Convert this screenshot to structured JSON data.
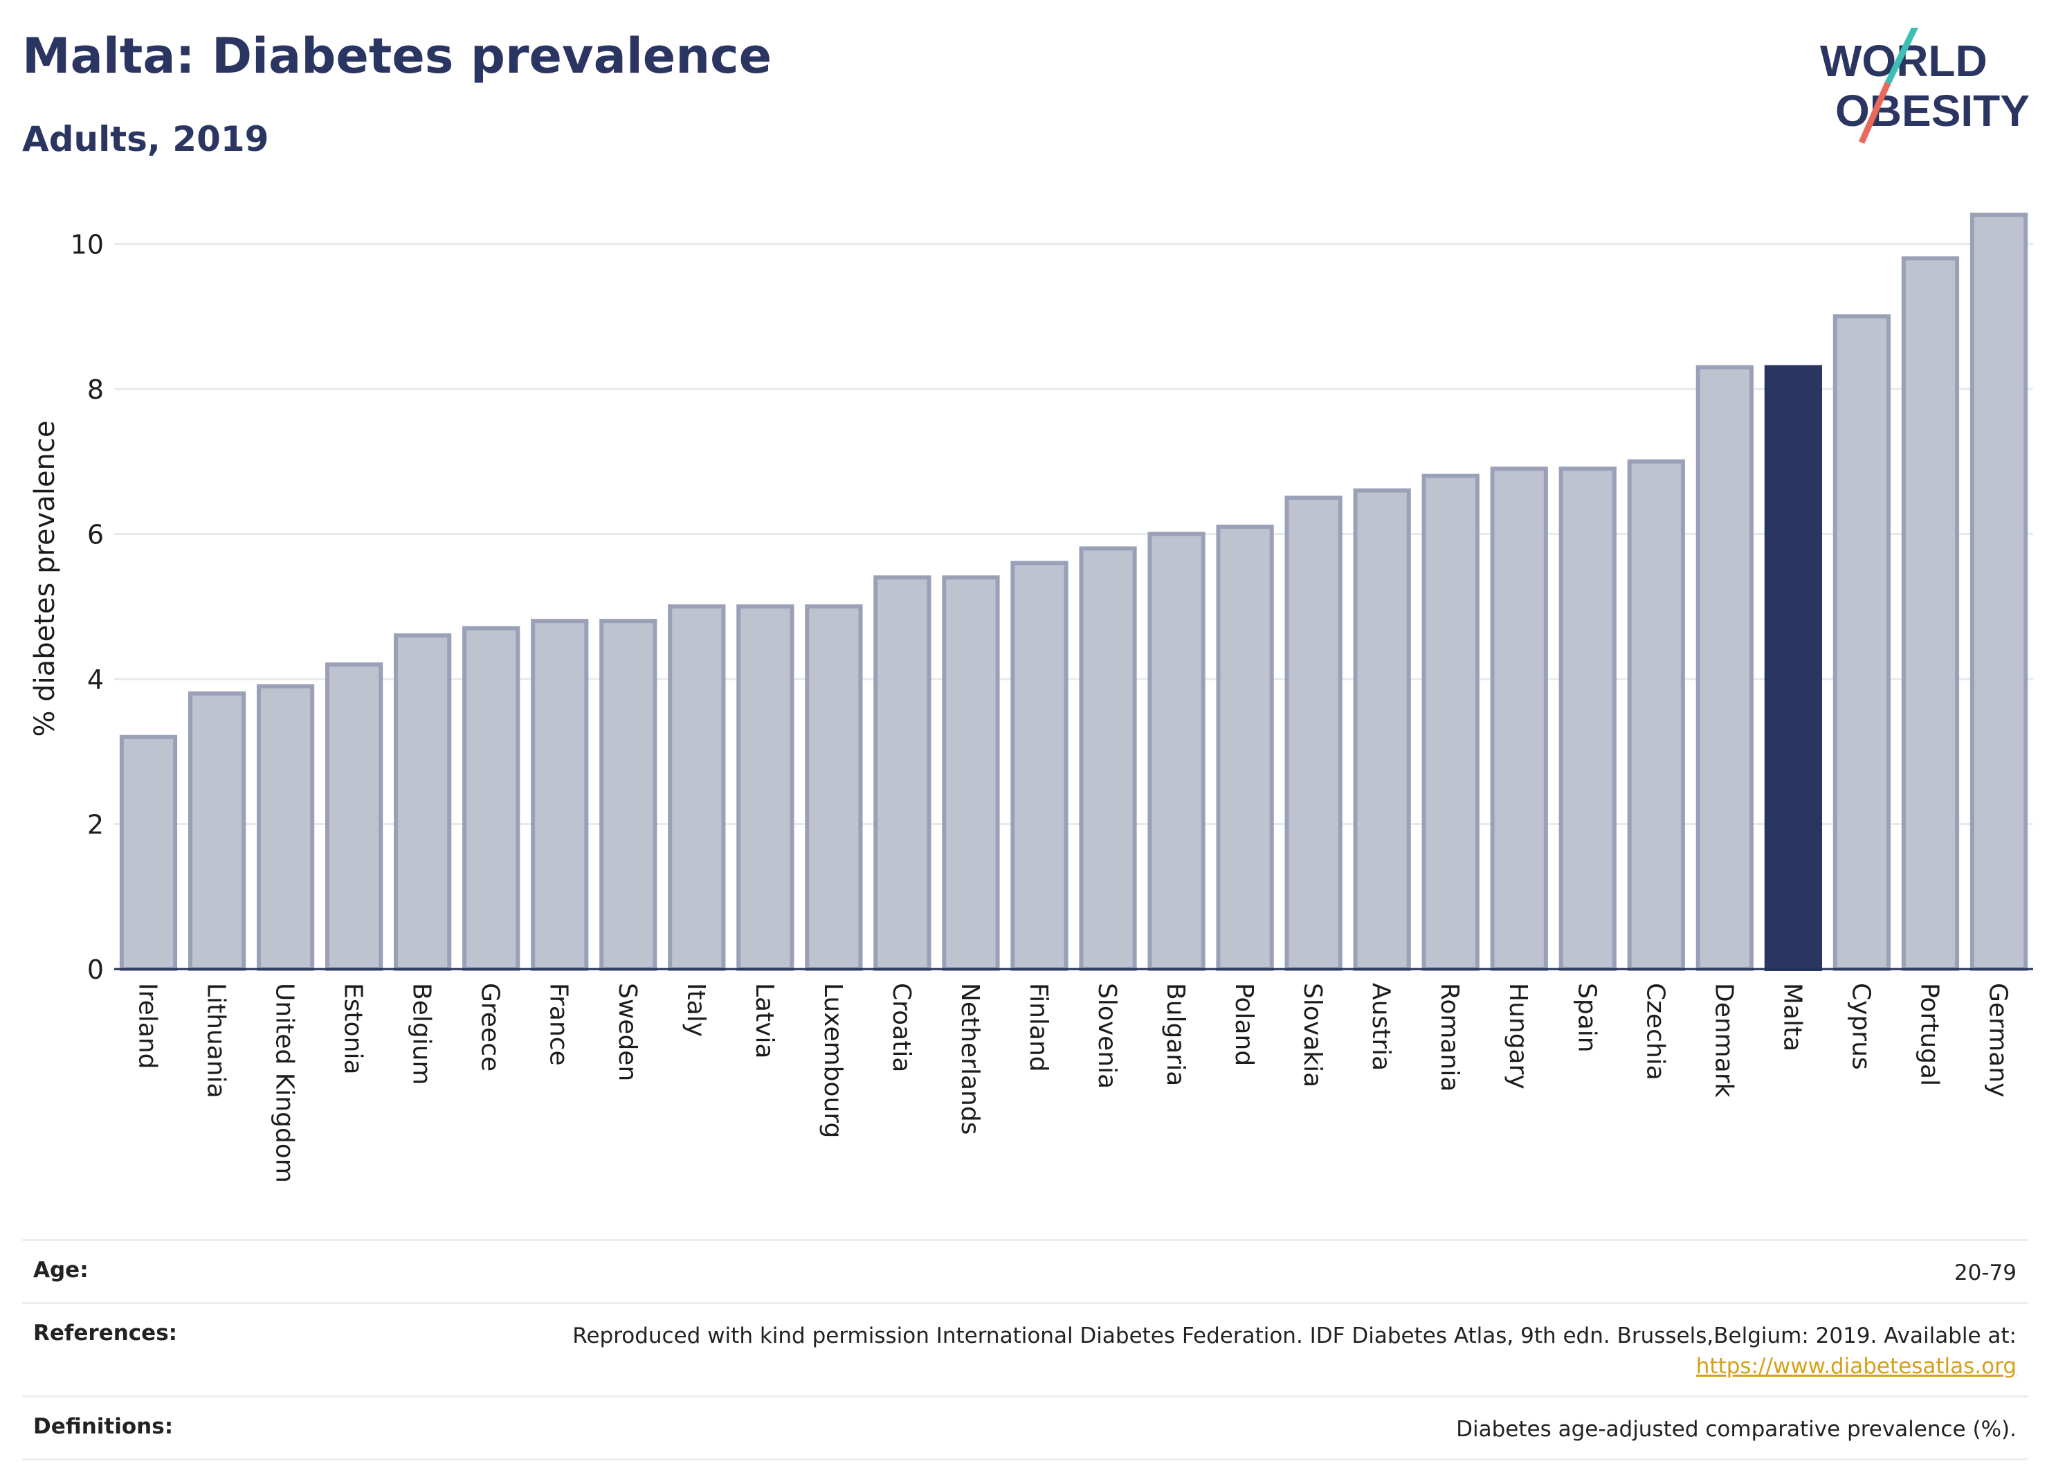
{
  "header": {
    "title": "Malta: Diabetes prevalence",
    "subtitle": "Adults, 2019"
  },
  "logo": {
    "line1": "WORLD",
    "line2": "OBESITY",
    "colors": {
      "text": "#2b3561",
      "slash_teal": "#3bbfb4",
      "slash_coral": "#e96a5d"
    }
  },
  "chart_data": {
    "type": "bar",
    "categories": [
      "Ireland",
      "Lithuania",
      "United Kingdom",
      "Estonia",
      "Belgium",
      "Greece",
      "France",
      "Sweden",
      "Italy",
      "Latvia",
      "Luxembourg",
      "Croatia",
      "Netherlands",
      "Finland",
      "Slovenia",
      "Bulgaria",
      "Poland",
      "Slovakia",
      "Austria",
      "Romania",
      "Hungary",
      "Spain",
      "Czechia",
      "Denmark",
      "Malta",
      "Cyprus",
      "Portugal",
      "Germany"
    ],
    "values": [
      3.2,
      3.8,
      3.9,
      4.2,
      4.6,
      4.7,
      4.8,
      4.8,
      5.0,
      5.0,
      5.0,
      5.4,
      5.4,
      5.6,
      5.8,
      6.0,
      6.1,
      6.5,
      6.6,
      6.8,
      6.9,
      6.9,
      7.0,
      8.3,
      8.3,
      9.0,
      9.8,
      10.4
    ],
    "highlight": "Malta",
    "ylabel": "% diabetes prevalence",
    "xlabel": "",
    "ylim": [
      0,
      10.5
    ],
    "yticks": [
      0,
      2,
      4,
      6,
      8,
      10
    ],
    "grid": true,
    "colors": {
      "bar": "#bfc3d0",
      "bar_edge": "#9aa0b8",
      "highlight": "#2b3561",
      "grid": "#e6e9ee",
      "axis": "#263159"
    }
  },
  "info": {
    "age_label": "Age:",
    "age_value": "20-79",
    "references_label": "References:",
    "references_text": "Reproduced with kind permission International Diabetes Federation. IDF Diabetes Atlas, 9th edn. Brussels,Belgium: 2019. Available at:",
    "references_link": "https://www.diabetesatlas.org",
    "definitions_label": "Definitions:",
    "definitions_text": "Diabetes age-adjusted comparative prevalence (%)."
  }
}
